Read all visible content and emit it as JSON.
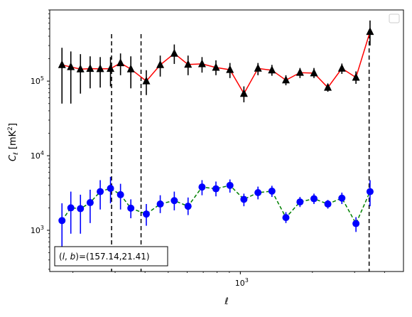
{
  "chart_data": {
    "type": "scatter",
    "xscale": "log",
    "yscale": "log",
    "xlim": [
      160,
      4800
    ],
    "ylim": [
      280,
      900000
    ],
    "xlabel": "ℓ",
    "ylabel": "C_ℓ [mK²]",
    "xticks": [
      {
        "value": 1000,
        "base": "10",
        "exp": "3"
      }
    ],
    "yticks": [
      {
        "value": 1000,
        "base": "10",
        "exp": "3"
      },
      {
        "value": 10000,
        "base": "10",
        "exp": "4"
      },
      {
        "value": 100000,
        "base": "10",
        "exp": "5"
      }
    ],
    "legend": {
      "placement": "top-right",
      "entries": []
    },
    "annotation": "(l, b)=(157.14,21.41)",
    "vlines": [
      {
        "x": 290
      },
      {
        "x": 385
      },
      {
        "x": 3450
      }
    ],
    "series": [
      {
        "marker": "triangle",
        "color": "#000000",
        "line_color": "#ff0000",
        "line_style": "solid",
        "points": [
          {
            "x": 180,
            "y": 165000,
            "lo": 50000,
            "hi": 280000
          },
          {
            "x": 196,
            "y": 155000,
            "lo": 50000,
            "hi": 250000
          },
          {
            "x": 215,
            "y": 145000,
            "lo": 68000,
            "hi": 230000
          },
          {
            "x": 236,
            "y": 147000,
            "lo": 80000,
            "hi": 215000
          },
          {
            "x": 260,
            "y": 146000,
            "lo": 82000,
            "hi": 210000
          },
          {
            "x": 287,
            "y": 147000,
            "lo": 85000,
            "hi": 210000
          },
          {
            "x": 316,
            "y": 175000,
            "lo": 120000,
            "hi": 235000
          },
          {
            "x": 349,
            "y": 145000,
            "lo": 80000,
            "hi": 215000
          },
          {
            "x": 405,
            "y": 100000,
            "lo": 65000,
            "hi": 140000
          },
          {
            "x": 463,
            "y": 165000,
            "lo": 115000,
            "hi": 220000
          },
          {
            "x": 530,
            "y": 235000,
            "lo": 170000,
            "hi": 310000
          },
          {
            "x": 605,
            "y": 167000,
            "lo": 120000,
            "hi": 220000
          },
          {
            "x": 692,
            "y": 170000,
            "lo": 130000,
            "hi": 210000
          },
          {
            "x": 791,
            "y": 152000,
            "lo": 120000,
            "hi": 190000
          },
          {
            "x": 905,
            "y": 142000,
            "lo": 110000,
            "hi": 175000
          },
          {
            "x": 1035,
            "y": 68000,
            "lo": 52000,
            "hi": 85000
          },
          {
            "x": 1185,
            "y": 148000,
            "lo": 120000,
            "hi": 175000
          },
          {
            "x": 1355,
            "y": 140000,
            "lo": 118000,
            "hi": 165000
          },
          {
            "x": 1550,
            "y": 103000,
            "lo": 88000,
            "hi": 120000
          },
          {
            "x": 1775,
            "y": 130000,
            "lo": 110000,
            "hi": 150000
          },
          {
            "x": 2030,
            "y": 128000,
            "lo": 110000,
            "hi": 150000
          },
          {
            "x": 2320,
            "y": 82000,
            "lo": 72000,
            "hi": 92000
          },
          {
            "x": 2655,
            "y": 148000,
            "lo": 125000,
            "hi": 172000
          },
          {
            "x": 3040,
            "y": 112000,
            "lo": 92000,
            "hi": 135000
          },
          {
            "x": 3480,
            "y": 460000,
            "lo": 300000,
            "hi": 650000
          }
        ]
      },
      {
        "marker": "circle",
        "color": "#0000ff",
        "line_color": "#008000",
        "line_style": "dashed",
        "points": [
          {
            "x": 180,
            "y": 1350,
            "lo": 600,
            "hi": 2300
          },
          {
            "x": 196,
            "y": 2000,
            "lo": 900,
            "hi": 3300
          },
          {
            "x": 215,
            "y": 1950,
            "lo": 900,
            "hi": 3000
          },
          {
            "x": 236,
            "y": 2350,
            "lo": 1250,
            "hi": 3500
          },
          {
            "x": 260,
            "y": 3300,
            "lo": 1900,
            "hi": 4700
          },
          {
            "x": 287,
            "y": 3650,
            "lo": 2300,
            "hi": 5200
          },
          {
            "x": 316,
            "y": 3000,
            "lo": 1900,
            "hi": 4200
          },
          {
            "x": 349,
            "y": 1980,
            "lo": 1450,
            "hi": 2600
          },
          {
            "x": 405,
            "y": 1650,
            "lo": 1150,
            "hi": 2250
          },
          {
            "x": 463,
            "y": 2250,
            "lo": 1700,
            "hi": 2950
          },
          {
            "x": 530,
            "y": 2500,
            "lo": 1850,
            "hi": 3300
          },
          {
            "x": 605,
            "y": 2100,
            "lo": 1600,
            "hi": 2750
          },
          {
            "x": 692,
            "y": 3800,
            "lo": 2950,
            "hi": 4700
          },
          {
            "x": 791,
            "y": 3600,
            "lo": 2850,
            "hi": 4500
          },
          {
            "x": 905,
            "y": 4000,
            "lo": 3200,
            "hi": 4800
          },
          {
            "x": 1035,
            "y": 2600,
            "lo": 2100,
            "hi": 3100
          },
          {
            "x": 1185,
            "y": 3200,
            "lo": 2600,
            "hi": 3850
          },
          {
            "x": 1355,
            "y": 3350,
            "lo": 2800,
            "hi": 3950
          },
          {
            "x": 1550,
            "y": 1480,
            "lo": 1250,
            "hi": 1750
          },
          {
            "x": 1775,
            "y": 2400,
            "lo": 2050,
            "hi": 2800
          },
          {
            "x": 2030,
            "y": 2650,
            "lo": 2250,
            "hi": 3100
          },
          {
            "x": 2320,
            "y": 2250,
            "lo": 1950,
            "hi": 2550
          },
          {
            "x": 2655,
            "y": 2700,
            "lo": 2250,
            "hi": 3200
          },
          {
            "x": 3040,
            "y": 1230,
            "lo": 950,
            "hi": 1500
          },
          {
            "x": 3480,
            "y": 3300,
            "lo": 2100,
            "hi": 4700
          }
        ]
      }
    ]
  }
}
